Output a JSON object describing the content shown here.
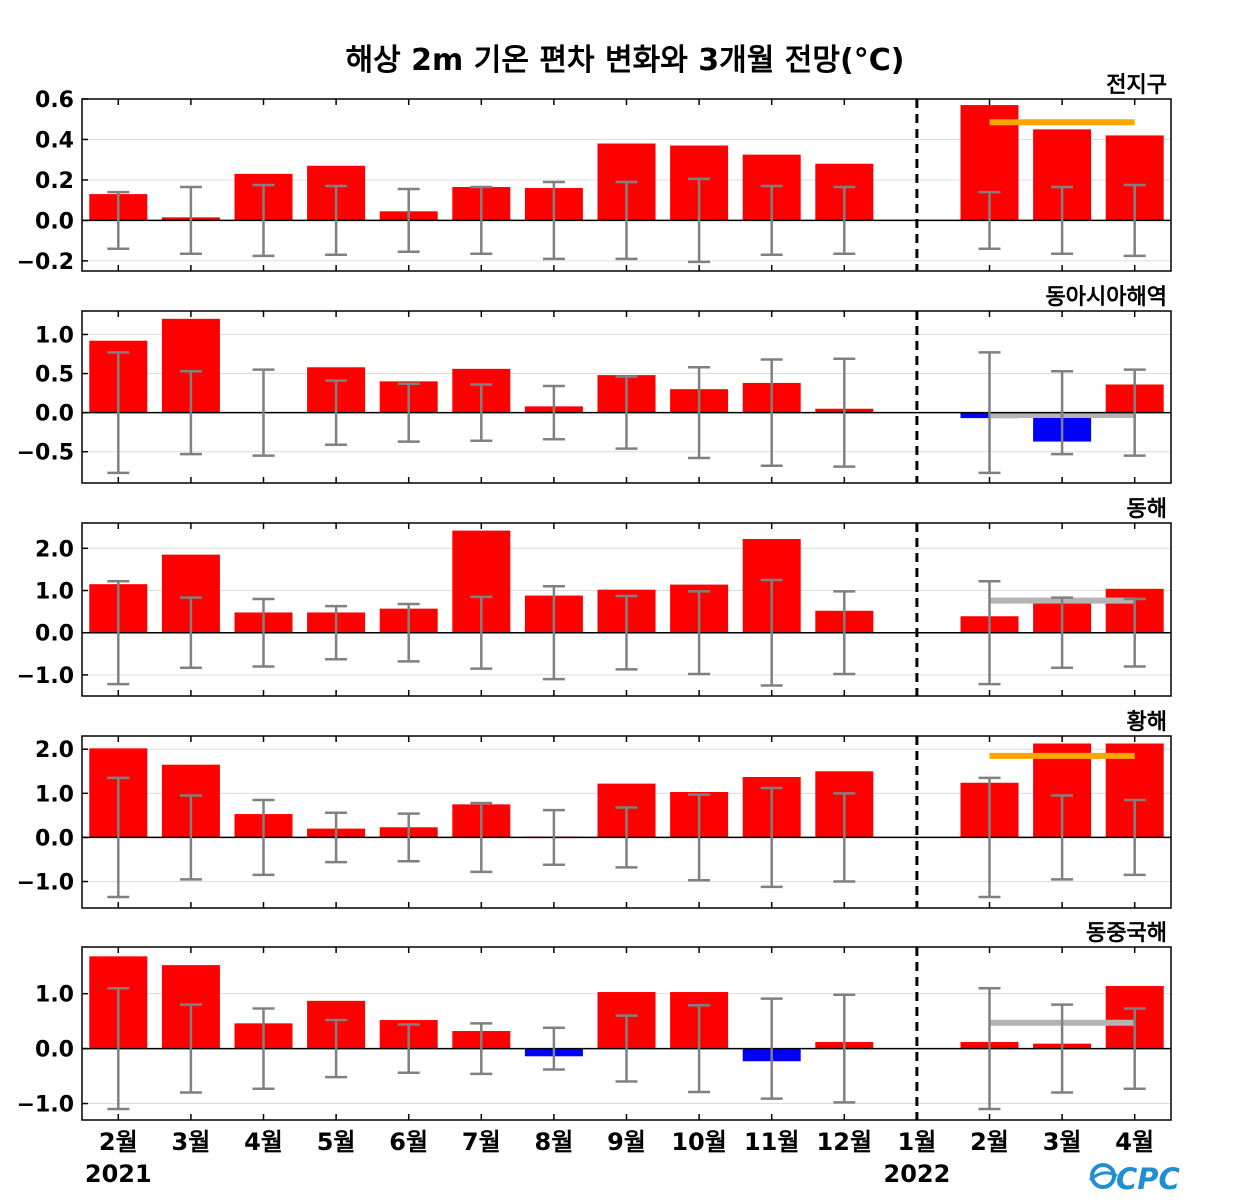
{
  "title": "해상 2m 기온 편차 변화와 3개월 전망(°C)",
  "logo_text": "CPC",
  "colors": {
    "positive": "#ff0000",
    "negative": "#0000ff",
    "errorbar": "#808080",
    "forecast_warm": "#ffa500",
    "forecast_normal": "#b4b4b4",
    "divider": "#000000"
  },
  "chart_data": {
    "type": "bar",
    "categories": [
      "2월",
      "3월",
      "4월",
      "5월",
      "6월",
      "7월",
      "8월",
      "9월",
      "10월",
      "11월",
      "12월",
      "1월",
      "2월",
      "3월",
      "4월"
    ],
    "year_labels": [
      {
        "index": 0,
        "label": "2021"
      },
      {
        "index": 11,
        "label": "2022"
      }
    ],
    "divider_after_index": 11,
    "panels": [
      {
        "title": "전지구",
        "ylim": [
          -0.25,
          0.6
        ],
        "yticks": [
          -0.2,
          0.0,
          0.2,
          0.4,
          0.6
        ],
        "ytick_labels": [
          "−0.2",
          "0.0",
          "0.2",
          "0.4",
          "0.6"
        ],
        "values": [
          0.13,
          0.015,
          0.23,
          0.27,
          0.045,
          0.165,
          0.16,
          0.38,
          0.37,
          0.325,
          0.28,
          0.0,
          0.57,
          0.45,
          0.42
        ],
        "errorbar": [
          0.14,
          0.165,
          0.175,
          0.17,
          0.155,
          0.165,
          0.19,
          0.19,
          0.205,
          0.17,
          0.165,
          null,
          0.14,
          0.165,
          0.175
        ],
        "forecast_level": {
          "value": 0.485,
          "category": "warm"
        }
      },
      {
        "title": "동아시아해역",
        "ylim": [
          -0.9,
          1.3
        ],
        "yticks": [
          -0.5,
          0.0,
          0.5,
          1.0
        ],
        "ytick_labels": [
          "−0.5",
          "0.0",
          "0.5",
          "1.0"
        ],
        "values": [
          0.92,
          1.2,
          0.0,
          0.58,
          0.4,
          0.56,
          0.08,
          0.48,
          0.3,
          0.38,
          0.05,
          0.0,
          -0.07,
          -0.37,
          0.36
        ],
        "errorbar": [
          0.77,
          0.53,
          0.55,
          0.41,
          0.37,
          0.36,
          0.34,
          0.46,
          0.58,
          0.68,
          0.69,
          null,
          0.77,
          0.53,
          0.55
        ],
        "forecast_level": {
          "value": -0.03,
          "category": "normal"
        }
      },
      {
        "title": "동해",
        "ylim": [
          -1.5,
          2.6
        ],
        "yticks": [
          -1.0,
          0.0,
          1.0,
          2.0
        ],
        "ytick_labels": [
          "−1.0",
          "0.0",
          "1.0",
          "2.0"
        ],
        "values": [
          1.15,
          1.85,
          0.48,
          0.48,
          0.57,
          2.42,
          0.88,
          1.02,
          1.14,
          2.22,
          0.52,
          0.0,
          0.39,
          0.82,
          1.04
        ],
        "errorbar": [
          1.22,
          0.83,
          0.8,
          0.63,
          0.68,
          0.85,
          1.1,
          0.87,
          0.98,
          1.25,
          0.98,
          null,
          1.22,
          0.83,
          0.8
        ],
        "forecast_level": {
          "value": 0.76,
          "category": "normal"
        }
      },
      {
        "title": "황해",
        "ylim": [
          -1.6,
          2.3
        ],
        "yticks": [
          -1.0,
          0.0,
          1.0,
          2.0
        ],
        "ytick_labels": [
          "−1.0",
          "0.0",
          "1.0",
          "2.0"
        ],
        "values": [
          2.02,
          1.65,
          0.53,
          0.2,
          0.23,
          0.75,
          0.02,
          1.22,
          1.03,
          1.37,
          1.5,
          0.0,
          1.24,
          2.13,
          2.13
        ],
        "errorbar": [
          1.35,
          0.95,
          0.85,
          0.56,
          0.54,
          0.78,
          0.62,
          0.68,
          0.97,
          1.12,
          1.0,
          null,
          1.35,
          0.95,
          0.85
        ],
        "forecast_level": {
          "value": 1.85,
          "category": "warm"
        }
      },
      {
        "title": "동중국해",
        "ylim": [
          -1.3,
          1.85
        ],
        "yticks": [
          -1.0,
          0.0,
          1.0
        ],
        "ytick_labels": [
          "−1.0",
          "0.0",
          "1.0"
        ],
        "values": [
          1.68,
          1.52,
          0.46,
          0.87,
          0.52,
          0.32,
          -0.14,
          1.03,
          1.03,
          -0.23,
          0.12,
          0.0,
          0.12,
          0.09,
          1.14
        ],
        "errorbar": [
          1.1,
          0.8,
          0.73,
          0.52,
          0.44,
          0.46,
          0.38,
          0.6,
          0.79,
          0.91,
          0.98,
          null,
          1.1,
          0.8,
          0.73
        ],
        "forecast_level": {
          "value": 0.47,
          "category": "normal"
        }
      }
    ]
  }
}
